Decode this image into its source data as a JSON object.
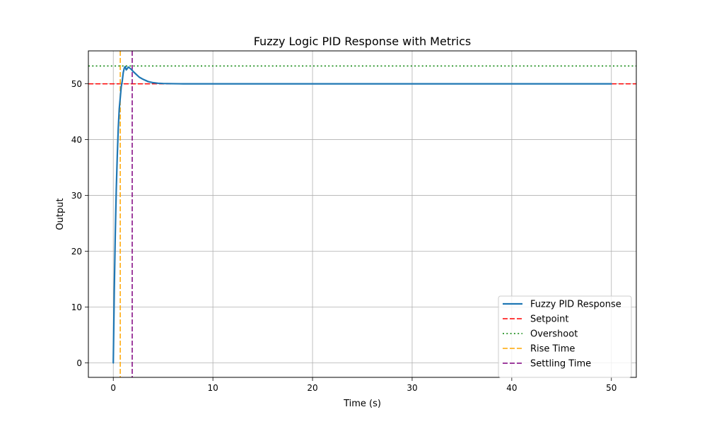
{
  "chart_data": {
    "type": "line",
    "title": "Fuzzy Logic PID Response with Metrics",
    "xlabel": "Time (s)",
    "ylabel": "Output",
    "xlim": [
      -2.5,
      52.5
    ],
    "ylim": [
      -2.6,
      55.9
    ],
    "xticks": [
      0,
      10,
      20,
      30,
      40,
      50
    ],
    "yticks": [
      0,
      10,
      20,
      30,
      40,
      50
    ],
    "grid": true,
    "legend_position": "bottom-right",
    "series": [
      {
        "name": "Fuzzy PID Response",
        "color": "#1f77b4",
        "style": "solid",
        "x": [
          0,
          0.1,
          0.2,
          0.3,
          0.4,
          0.5,
          0.6,
          0.7,
          0.8,
          0.9,
          1.0,
          1.1,
          1.2,
          1.3,
          1.4,
          1.5,
          1.6,
          1.8,
          2.0,
          2.3,
          2.6,
          3.0,
          3.5,
          4.0,
          4.5,
          5.0,
          6.0,
          7.0,
          8.0,
          10.0,
          15.0,
          20.0,
          25.0,
          30.0,
          35.0,
          40.0,
          45.0,
          50.0
        ],
        "y": [
          0,
          13,
          23,
          31,
          37,
          42,
          45.5,
          47.5,
          49.5,
          50.5,
          52.0,
          52.8,
          53.1,
          52.5,
          52.7,
          53.0,
          52.9,
          52.6,
          52.2,
          51.7,
          51.2,
          50.8,
          50.4,
          50.2,
          50.1,
          50.05,
          50.02,
          50.0,
          50.0,
          50.0,
          50.0,
          50.0,
          50.0,
          50.0,
          50.0,
          50.0,
          50.0,
          50.0
        ]
      }
    ],
    "reference_lines": [
      {
        "name": "Setpoint",
        "orientation": "horizontal",
        "value": 50,
        "color": "#ff0000",
        "style": "dashed"
      },
      {
        "name": "Overshoot",
        "orientation": "horizontal",
        "value": 53.2,
        "color": "#008000",
        "style": "dotted"
      },
      {
        "name": "Rise Time",
        "orientation": "vertical",
        "value": 0.7,
        "color": "#ffa500",
        "style": "dashed"
      },
      {
        "name": "Settling Time",
        "orientation": "vertical",
        "value": 1.9,
        "color": "#800080",
        "style": "dashed"
      }
    ]
  }
}
